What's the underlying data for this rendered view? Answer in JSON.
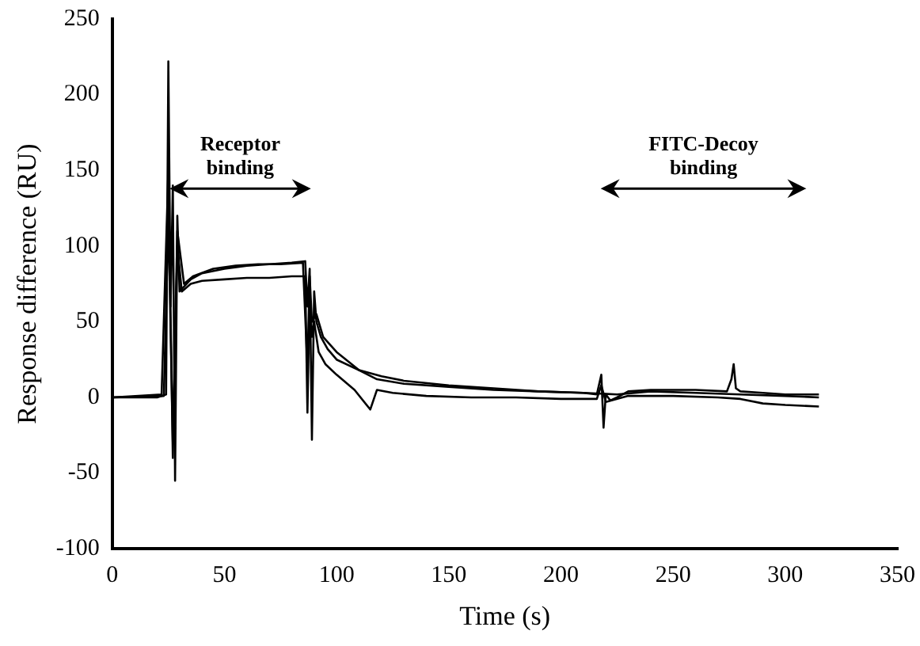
{
  "chart_data": {
    "type": "line",
    "xlabel": "Time (s)",
    "ylabel": "Response difference (RU)",
    "xlim": [
      0,
      350
    ],
    "xticks": [
      0,
      50,
      100,
      150,
      200,
      250,
      300,
      350
    ],
    "ylim": [
      -100,
      250
    ],
    "yticks": [
      -100,
      -50,
      0,
      50,
      100,
      150,
      200,
      250
    ],
    "grid": false,
    "marker": "none",
    "line_style": "solid",
    "annotations": [
      "Receptor binding",
      "FITC-Decoy binding"
    ],
    "series": [
      {
        "color": "#000000",
        "x": [
          0,
          20,
          24,
          25,
          26,
          27,
          28,
          29,
          30,
          35,
          40,
          50,
          60,
          70,
          80,
          86,
          87,
          88,
          89,
          90,
          91,
          93,
          96,
          100,
          110,
          120,
          130,
          150,
          170,
          190,
          210,
          216,
          218,
          219,
          220,
          222,
          225,
          230,
          240,
          260,
          274,
          276,
          277,
          278,
          280,
          290,
          300,
          315
        ],
        "values": [
          0,
          0,
          2,
          222,
          60,
          140,
          -55,
          120,
          70,
          78,
          82,
          85,
          87,
          88,
          89,
          90,
          60,
          85,
          -28,
          70,
          50,
          40,
          32,
          25,
          18,
          14,
          11,
          8,
          6,
          4,
          3,
          2,
          15,
          -20,
          2,
          -2,
          0,
          4,
          5,
          5,
          4,
          12,
          22,
          6,
          4,
          3,
          2,
          2
        ]
      },
      {
        "color": "#000000",
        "x": [
          0,
          22,
          25,
          27,
          29,
          31,
          35,
          40,
          50,
          60,
          70,
          80,
          86,
          87,
          88,
          89,
          90,
          92,
          95,
          100,
          108,
          115,
          118,
          125,
          140,
          160,
          180,
          200,
          216,
          218,
          220,
          230,
          250,
          270,
          280,
          290,
          300,
          315
        ],
        "values": [
          0,
          2,
          150,
          -40,
          100,
          70,
          75,
          77,
          78,
          79,
          79,
          80,
          80,
          -10,
          70,
          40,
          50,
          30,
          22,
          15,
          5,
          -8,
          5,
          3,
          1,
          0,
          0,
          -1,
          -1,
          8,
          -3,
          1,
          1,
          0,
          -1,
          -4,
          -5,
          -6
        ]
      },
      {
        "color": "#000000",
        "x": [
          0,
          23,
          25,
          27,
          29,
          32,
          36,
          45,
          55,
          65,
          75,
          85,
          87,
          88,
          89,
          91,
          94,
          100,
          110,
          118,
          130,
          150,
          170,
          190,
          210,
          225,
          240,
          260,
          280,
          300,
          315
        ],
        "values": [
          0,
          1,
          120,
          -30,
          110,
          75,
          80,
          85,
          87,
          88,
          88,
          89,
          20,
          80,
          50,
          55,
          40,
          30,
          18,
          12,
          9,
          7,
          5,
          4,
          3,
          2,
          4,
          3,
          2,
          1,
          0
        ]
      }
    ]
  }
}
